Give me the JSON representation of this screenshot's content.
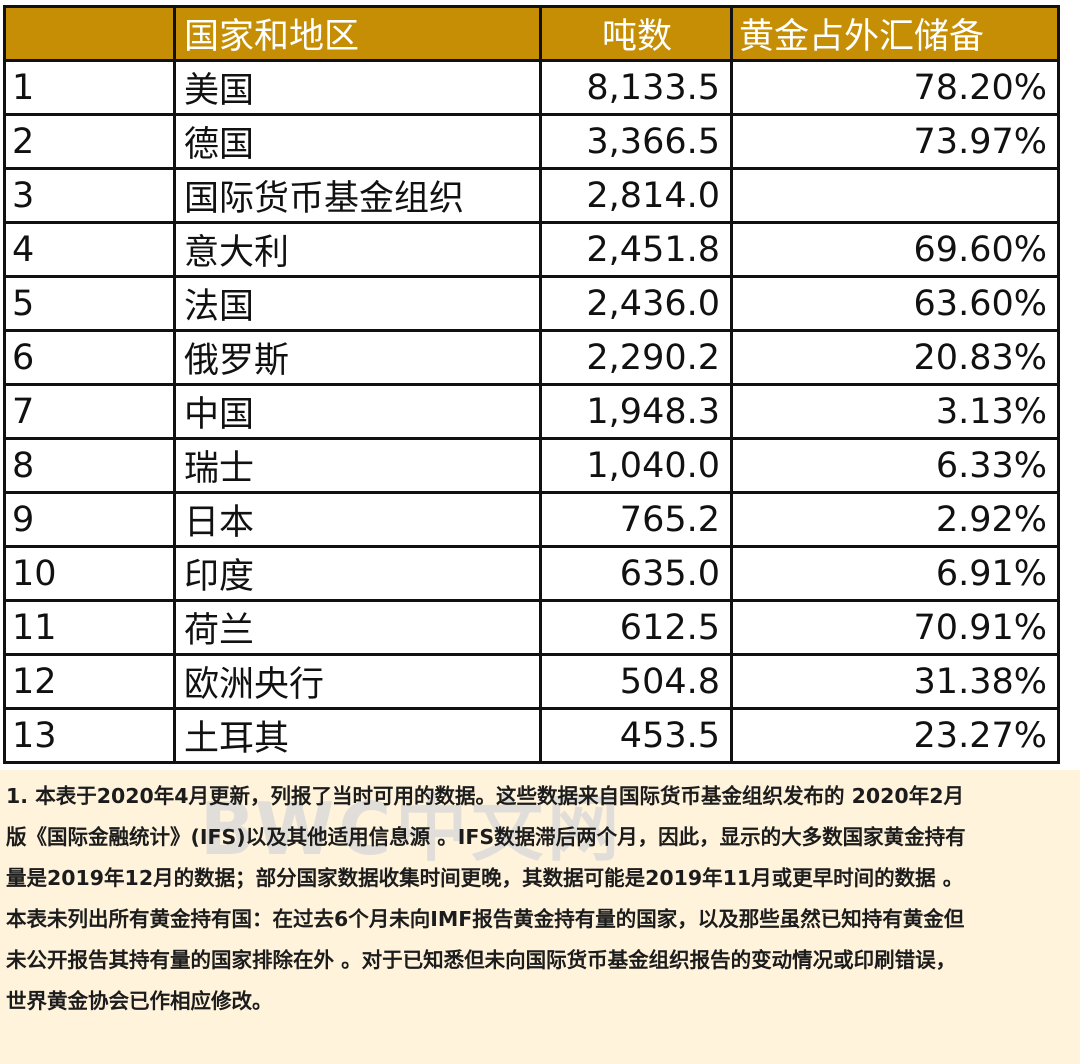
{
  "table": {
    "headers": {
      "rank": "",
      "name": "国家和地区",
      "tonnes": "吨数",
      "percent": "黄金占外汇储备"
    },
    "rows": [
      {
        "rank": "1",
        "name": "美国",
        "tonnes": "8,133.5",
        "percent": "78.20%"
      },
      {
        "rank": "2",
        "name": "德国",
        "tonnes": "3,366.5",
        "percent": "73.97%"
      },
      {
        "rank": "3",
        "name": "国际货币基金组织",
        "tonnes": "2,814.0",
        "percent": ""
      },
      {
        "rank": "4",
        "name": "意大利",
        "tonnes": "2,451.8",
        "percent": "69.60%"
      },
      {
        "rank": "5",
        "name": "法国",
        "tonnes": "2,436.0",
        "percent": "63.60%"
      },
      {
        "rank": "6",
        "name": "俄罗斯",
        "tonnes": "2,290.2",
        "percent": "20.83%"
      },
      {
        "rank": "7",
        "name": "中国",
        "tonnes": "1,948.3",
        "percent": "3.13%"
      },
      {
        "rank": "8",
        "name": "瑞士",
        "tonnes": "1,040.0",
        "percent": "6.33%"
      },
      {
        "rank": "9",
        "name": "日本",
        "tonnes": "765.2",
        "percent": "2.92%"
      },
      {
        "rank": "10",
        "name": "印度",
        "tonnes": "635.0",
        "percent": "6.91%"
      },
      {
        "rank": "11",
        "name": "荷兰",
        "tonnes": "612.5",
        "percent": "70.91%"
      },
      {
        "rank": "12",
        "name": "欧洲央行",
        "tonnes": "504.8",
        "percent": "31.38%"
      },
      {
        "rank": "13",
        "name": "土耳其",
        "tonnes": "453.5",
        "percent": "23.27%"
      }
    ]
  },
  "notes": {
    "watermark": "BWC中文网",
    "paragraph1": [
      "1. 本表于2020年4月更新，列报了当时可用的数据。这些数据来自国际货币基金组织发布的 2020年2月",
      "版《国际金融统计》(IFS)以及其他适用信息源 。IFS数据滞后两个月，因此，显示的大多数国家黄金持有",
      "量是2019年12月的数据；部分国家数据收集时间更晚，其数据可能是2019年11月或更早时间的数据 。"
    ],
    "paragraph2": [
      "本表未列出所有黄金持有国：在过去6个月未向IMF报告黄金持有量的国家，以及那些虽然已知持有黄金但",
      "未公开报告其持有量的国家排除在外 。对于已知悉但未向国际货币基金组织报告的变动情况或印刷错误，",
      "世界黄金协会已作相应修改。"
    ]
  },
  "colors": {
    "header_background": "#c58e05",
    "header_text": "#ffffff",
    "notes_background": "#fff3dc",
    "border": "#111111"
  }
}
